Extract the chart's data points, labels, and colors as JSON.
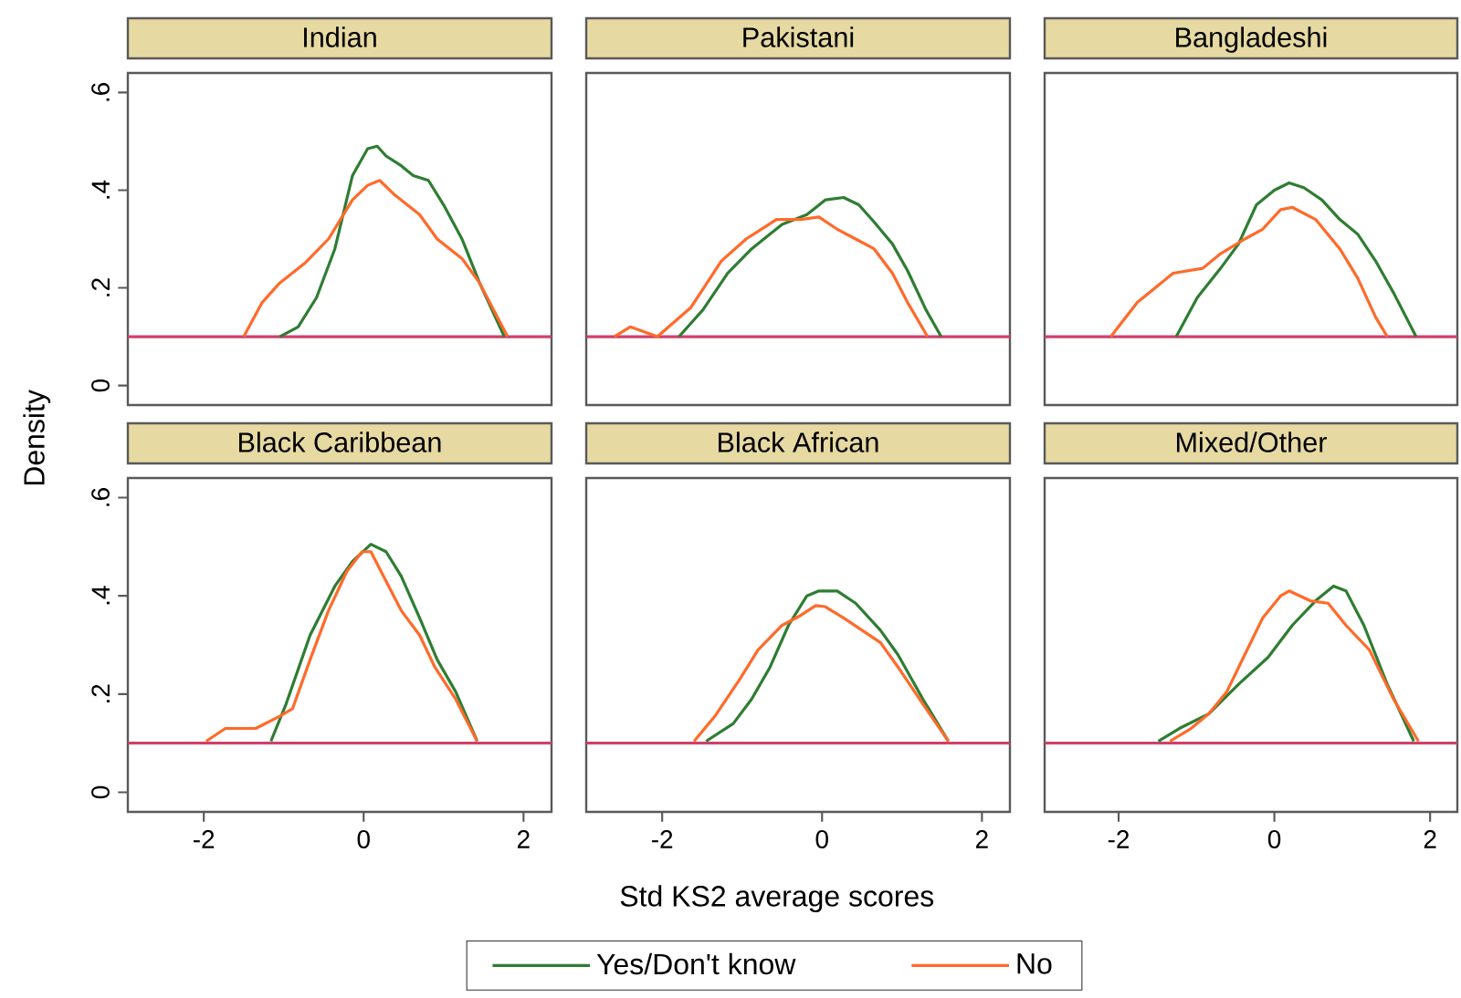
{
  "chart_data": [
    {
      "type": "line",
      "title": "Indian",
      "ylabel": "Density",
      "xlim": [
        -2.95,
        2.35
      ],
      "ylim": [
        -0.04,
        0.64
      ],
      "yticks": [
        0,
        {
          "value": 0.2,
          "label": ".2"
        },
        {
          "value": 0.4,
          "label": ".4"
        },
        {
          "value": 0.6,
          "label": ".6"
        }
      ],
      "tick_labels": "y",
      "ref_lines": [
        {
          "axis": "y",
          "value": 0.1,
          "color": "#d0406a"
        }
      ],
      "series": [
        {
          "color": "#2e7d32",
          "x": [
            -1.05,
            -0.82,
            -0.59,
            -0.36,
            -0.14,
            0.05,
            0.17,
            0.28,
            0.47,
            0.62,
            0.81,
            1.0,
            1.23,
            1.45,
            1.76
          ],
          "values": [
            0.1,
            0.12,
            0.18,
            0.28,
            0.43,
            0.485,
            0.49,
            0.47,
            0.45,
            0.43,
            0.42,
            0.37,
            0.3,
            0.21,
            0.1
          ]
        },
        {
          "color": "#ff6a2a",
          "x": [
            -1.5,
            -1.27,
            -1.05,
            -0.74,
            -0.44,
            -0.14,
            0.05,
            0.2,
            0.39,
            0.7,
            0.92,
            1.23,
            1.45,
            1.8
          ],
          "values": [
            0.1,
            0.17,
            0.21,
            0.25,
            0.3,
            0.38,
            0.41,
            0.42,
            0.39,
            0.35,
            0.3,
            0.26,
            0.21,
            0.1
          ]
        }
      ]
    },
    {
      "type": "line",
      "title": "Pakistani",
      "xlim": [
        -2.95,
        2.35
      ],
      "ylim": [
        -0.04,
        0.64
      ],
      "tick_labels": false,
      "ref_lines": [
        {
          "axis": "y",
          "value": 0.1,
          "color": "#d0406a"
        }
      ],
      "series": [
        {
          "color": "#2e7d32",
          "x": [
            -1.79,
            -1.49,
            -1.18,
            -0.88,
            -0.5,
            -0.19,
            0.04,
            0.27,
            0.46,
            0.65,
            0.88,
            1.07,
            1.3,
            1.49
          ],
          "values": [
            0.1,
            0.155,
            0.23,
            0.28,
            0.33,
            0.35,
            0.38,
            0.385,
            0.37,
            0.335,
            0.29,
            0.235,
            0.155,
            0.1
          ]
        },
        {
          "color": "#ff6a2a",
          "x": [
            -2.6,
            -2.4,
            -2.06,
            -1.64,
            -1.26,
            -0.95,
            -0.57,
            -0.27,
            -0.04,
            0.19,
            0.42,
            0.65,
            0.88,
            1.07,
            1.32
          ],
          "values": [
            0.1,
            0.12,
            0.1,
            0.16,
            0.255,
            0.3,
            0.34,
            0.34,
            0.345,
            0.32,
            0.3,
            0.28,
            0.23,
            0.17,
            0.1
          ]
        }
      ]
    },
    {
      "type": "line",
      "title": "Bangladeshi",
      "xlim": [
        -2.95,
        2.35
      ],
      "ylim": [
        -0.04,
        0.64
      ],
      "tick_labels": false,
      "ref_lines": [
        {
          "axis": "y",
          "value": 0.1,
          "color": "#d0406a"
        }
      ],
      "series": [
        {
          "color": "#2e7d32",
          "x": [
            -1.26,
            -0.99,
            -0.69,
            -0.46,
            -0.23,
            0.0,
            0.19,
            0.38,
            0.61,
            0.84,
            1.07,
            1.3,
            1.53,
            1.82
          ],
          "values": [
            0.1,
            0.18,
            0.24,
            0.29,
            0.37,
            0.4,
            0.415,
            0.405,
            0.38,
            0.34,
            0.31,
            0.255,
            0.19,
            0.1
          ]
        },
        {
          "color": "#ff6a2a",
          "x": [
            -2.1,
            -1.76,
            -1.3,
            -0.92,
            -0.69,
            -0.38,
            -0.15,
            0.08,
            0.23,
            0.53,
            0.84,
            1.07,
            1.3,
            1.45
          ],
          "values": [
            0.1,
            0.17,
            0.23,
            0.24,
            0.27,
            0.3,
            0.32,
            0.36,
            0.365,
            0.34,
            0.28,
            0.22,
            0.14,
            0.1
          ]
        }
      ]
    },
    {
      "type": "line",
      "title": "Black Caribbean",
      "xlim": [
        -2.95,
        2.35
      ],
      "ylim": [
        -0.04,
        0.64
      ],
      "xticks": [
        -2,
        0,
        2
      ],
      "yticks": [
        0,
        {
          "value": 0.2,
          "label": ".2"
        },
        {
          "value": 0.4,
          "label": ".4"
        },
        {
          "value": 0.6,
          "label": ".6"
        }
      ],
      "ref_lines": [
        {
          "axis": "y",
          "value": 0.1,
          "color": "#d0406a"
        }
      ],
      "series": [
        {
          "color": "#2e7d32",
          "x": [
            -1.16,
            -0.97,
            -0.67,
            -0.36,
            -0.14,
            0.09,
            0.28,
            0.47,
            0.7,
            0.92,
            1.15,
            1.42
          ],
          "values": [
            0.104,
            0.18,
            0.32,
            0.42,
            0.47,
            0.505,
            0.49,
            0.44,
            0.355,
            0.27,
            0.205,
            0.104
          ]
        },
        {
          "color": "#ff6a2a",
          "x": [
            -1.97,
            -1.73,
            -1.35,
            -1.05,
            -0.89,
            -0.67,
            -0.44,
            -0.21,
            -0.02,
            0.09,
            0.28,
            0.47,
            0.7,
            0.89,
            1.15,
            1.42
          ],
          "values": [
            0.104,
            0.13,
            0.13,
            0.155,
            0.17,
            0.27,
            0.37,
            0.45,
            0.49,
            0.49,
            0.43,
            0.37,
            0.32,
            0.255,
            0.19,
            0.104
          ]
        }
      ]
    },
    {
      "type": "line",
      "title": "Black African",
      "xlabel": "Std KS2 average scores",
      "legend": "bottom",
      "xlim": [
        -2.95,
        2.35
      ],
      "ylim": [
        -0.04,
        0.64
      ],
      "xticks": [
        -2,
        0,
        2
      ],
      "tick_labels": "x",
      "ref_lines": [
        {
          "axis": "y",
          "value": 0.1,
          "color": "#d0406a"
        }
      ],
      "series": [
        {
          "name": "Yes/Don't know",
          "color": "#2e7d32",
          "x": [
            -1.45,
            -1.11,
            -0.88,
            -0.65,
            -0.42,
            -0.19,
            -0.04,
            0.19,
            0.42,
            0.73,
            0.95,
            1.26,
            1.58
          ],
          "values": [
            0.104,
            0.14,
            0.19,
            0.255,
            0.34,
            0.4,
            0.41,
            0.41,
            0.385,
            0.33,
            0.28,
            0.19,
            0.104
          ]
        },
        {
          "name": "No",
          "color": "#ff6a2a",
          "x": [
            -1.6,
            -1.34,
            -1.03,
            -0.8,
            -0.5,
            -0.27,
            -0.08,
            0.04,
            0.27,
            0.5,
            0.73,
            0.95,
            1.26,
            1.58
          ],
          "values": [
            0.104,
            0.155,
            0.23,
            0.29,
            0.34,
            0.36,
            0.38,
            0.378,
            0.355,
            0.33,
            0.305,
            0.255,
            0.18,
            0.104
          ]
        }
      ]
    },
    {
      "type": "line",
      "title": "Mixed/Other",
      "xlim": [
        -2.95,
        2.35
      ],
      "ylim": [
        -0.04,
        0.64
      ],
      "xticks": [
        -2,
        0,
        2
      ],
      "tick_labels": "x",
      "ref_lines": [
        {
          "axis": "y",
          "value": 0.1,
          "color": "#d0406a"
        }
      ],
      "series": [
        {
          "color": "#2e7d32",
          "x": [
            -1.49,
            -1.22,
            -0.84,
            -0.46,
            -0.08,
            0.23,
            0.53,
            0.76,
            0.92,
            1.15,
            1.45,
            1.79
          ],
          "values": [
            0.104,
            0.13,
            0.16,
            0.22,
            0.275,
            0.34,
            0.39,
            0.42,
            0.41,
            0.34,
            0.22,
            0.104
          ]
        },
        {
          "color": "#ff6a2a",
          "x": [
            -1.34,
            -1.07,
            -0.84,
            -0.61,
            -0.38,
            -0.15,
            0.08,
            0.19,
            0.46,
            0.69,
            0.92,
            1.22,
            1.53,
            1.85
          ],
          "values": [
            0.104,
            0.13,
            0.16,
            0.205,
            0.28,
            0.355,
            0.4,
            0.41,
            0.39,
            0.385,
            0.34,
            0.29,
            0.19,
            0.104
          ]
        }
      ]
    }
  ]
}
